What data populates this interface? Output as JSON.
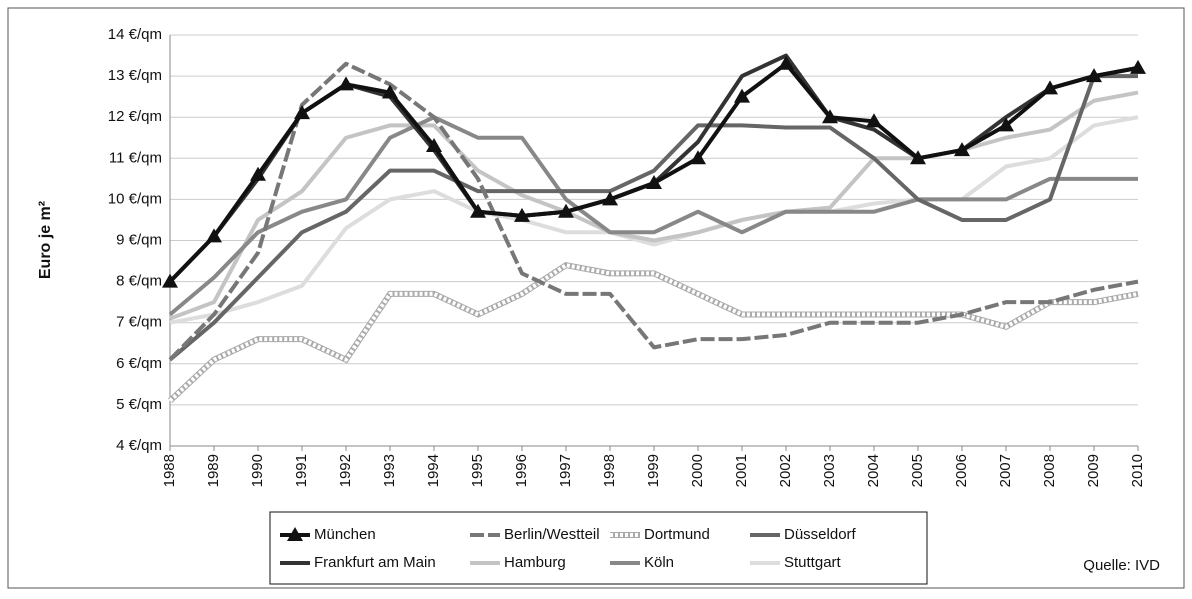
{
  "chart_data": {
    "type": "line",
    "y_label": "Euro je m²",
    "annotation": "Quelle: IVD",
    "categories": [
      "1988",
      "1989",
      "1990",
      "1991",
      "1992",
      "1993",
      "1994",
      "1995",
      "1996",
      "1997",
      "1998",
      "1999",
      "2000",
      "2001",
      "2002",
      "2003",
      "2004",
      "2005",
      "2006",
      "2007",
      "2008",
      "2009",
      "2010"
    ],
    "ylim": [
      4,
      14
    ],
    "yticks": [
      {
        "value": 4,
        "label": "4 €/qm"
      },
      {
        "value": 5,
        "label": "5 €/qm"
      },
      {
        "value": 6,
        "label": "6 €/qm"
      },
      {
        "value": 7,
        "label": "7 €/qm"
      },
      {
        "value": 8,
        "label": "8 €/qm"
      },
      {
        "value": 9,
        "label": "9 €/qm"
      },
      {
        "value": 10,
        "label": "10 €/qm"
      },
      {
        "value": 11,
        "label": "11 €/qm"
      },
      {
        "value": 12,
        "label": "12 €/qm"
      },
      {
        "value": 13,
        "label": "13 €/qm"
      },
      {
        "value": 14,
        "label": "14 €/qm"
      }
    ],
    "grid": true,
    "series": [
      {
        "name": "München",
        "color": "#111111",
        "marker": "triangle",
        "values": [
          8.0,
          9.1,
          10.6,
          12.1,
          12.8,
          12.6,
          11.3,
          9.7,
          9.6,
          9.7,
          10.0,
          10.4,
          11.0,
          12.5,
          13.3,
          12.0,
          11.9,
          11.0,
          11.2,
          11.8,
          12.7,
          13.0,
          13.2
        ]
      },
      {
        "name": "Berlin/Westteil",
        "color": "#777777",
        "dash": true,
        "values": [
          6.1,
          7.2,
          8.7,
          12.3,
          13.3,
          12.8,
          12.0,
          10.5,
          8.2,
          7.7,
          7.7,
          6.4,
          6.6,
          6.6,
          6.7,
          7.0,
          7.0,
          7.0,
          7.2,
          7.5,
          7.5,
          7.8,
          8.0
        ]
      },
      {
        "name": "Dortmund",
        "color": "#ffffff",
        "dotted": true,
        "values": [
          5.1,
          6.1,
          6.6,
          6.6,
          6.1,
          7.7,
          7.7,
          7.2,
          7.7,
          8.4,
          8.2,
          8.2,
          7.7,
          7.2,
          7.2,
          7.2,
          7.2,
          7.2,
          7.2,
          6.9,
          7.5,
          7.5,
          7.7
        ]
      },
      {
        "name": "Düsseldorf",
        "color": "#666666",
        "values": [
          6.1,
          7.0,
          8.1,
          9.2,
          9.7,
          10.7,
          10.7,
          10.2,
          10.2,
          10.2,
          10.2,
          10.7,
          11.8,
          11.8,
          11.75,
          11.75,
          11.0,
          10.0,
          9.5,
          9.5,
          10.0,
          13.0,
          13.0
        ]
      },
      {
        "name": "Frankfurt am Main",
        "color": "#333333",
        "values": [
          8.0,
          9.1,
          10.5,
          12.1,
          12.8,
          12.5,
          11.2,
          9.7,
          9.6,
          9.7,
          10.0,
          10.4,
          11.4,
          13.0,
          13.5,
          12.0,
          11.7,
          11.0,
          11.2,
          12.0,
          12.7,
          13.0,
          13.2
        ]
      },
      {
        "name": "Hamburg",
        "color": "#c4c4c4",
        "values": [
          7.1,
          7.5,
          9.5,
          10.2,
          11.5,
          11.8,
          11.8,
          10.7,
          10.1,
          9.7,
          9.2,
          9.0,
          9.2,
          9.5,
          9.7,
          9.8,
          11.0,
          11.0,
          11.2,
          11.5,
          11.7,
          12.4,
          12.6
        ]
      },
      {
        "name": "Köln",
        "color": "#888888",
        "values": [
          7.2,
          8.1,
          9.2,
          9.7,
          10.0,
          11.5,
          12.0,
          11.5,
          11.5,
          10.0,
          9.2,
          9.2,
          9.7,
          9.2,
          9.7,
          9.7,
          9.7,
          10.0,
          10.0,
          10.0,
          10.5,
          10.5,
          10.5
        ]
      },
      {
        "name": "Stuttgart",
        "color": "#dddddd",
        "values": [
          7.0,
          7.2,
          7.5,
          7.9,
          9.3,
          10.0,
          10.2,
          9.7,
          9.5,
          9.2,
          9.2,
          8.9,
          9.2,
          9.5,
          9.7,
          9.7,
          9.9,
          10.0,
          10.0,
          10.8,
          11.0,
          11.8,
          12.0
        ]
      }
    ]
  }
}
